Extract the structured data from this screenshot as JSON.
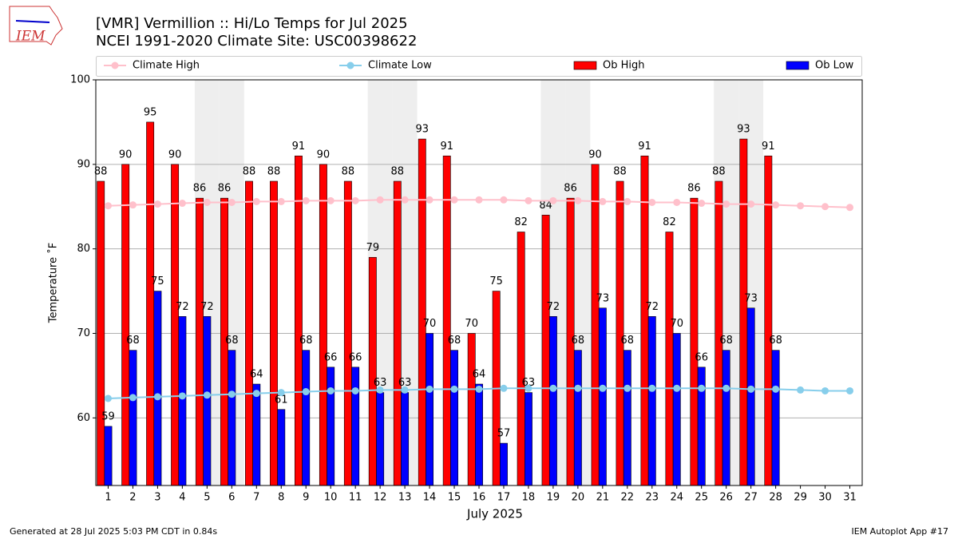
{
  "chart_data": {
    "type": "bar",
    "title": "[VMR] Vermillion :: Hi/Lo Temps for Jul 2025",
    "subtitle": "NCEI 1991-2020 Climate Site: USC00398622",
    "x_label": "July 2025",
    "y_label": "Temperature ˚F",
    "footer_left": "Generated at 28 Jul 2025 5:03 PM CDT in 0.84s",
    "footer_right": "IEM Autoplot App #17",
    "logo_text": "IEM",
    "x": [
      1,
      2,
      3,
      4,
      5,
      6,
      7,
      8,
      9,
      10,
      11,
      12,
      13,
      14,
      15,
      16,
      17,
      18,
      19,
      20,
      21,
      22,
      23,
      24,
      25,
      26,
      27,
      28,
      29,
      30,
      31
    ],
    "xlim": [
      0.5,
      31.5
    ],
    "xticks": [
      1,
      2,
      3,
      4,
      5,
      6,
      7,
      8,
      9,
      10,
      11,
      12,
      13,
      14,
      15,
      16,
      17,
      18,
      19,
      20,
      21,
      22,
      23,
      24,
      25,
      26,
      27,
      28,
      29,
      30,
      31
    ],
    "ylim": [
      52,
      100
    ],
    "yticks": [
      60,
      70,
      80,
      90,
      100
    ],
    "grid": true,
    "shaded_days": [
      5,
      6,
      12,
      13,
      19,
      20,
      26,
      27
    ],
    "series": [
      {
        "name": "Climate High",
        "type": "line",
        "color": "#ffc0cb",
        "values": [
          85.1,
          85.2,
          85.3,
          85.4,
          85.5,
          85.5,
          85.6,
          85.6,
          85.7,
          85.7,
          85.7,
          85.8,
          85.8,
          85.8,
          85.8,
          85.8,
          85.8,
          85.7,
          85.7,
          85.7,
          85.6,
          85.6,
          85.5,
          85.5,
          85.4,
          85.3,
          85.3,
          85.2,
          85.1,
          85.0,
          84.9
        ]
      },
      {
        "name": "Climate Low",
        "type": "line",
        "color": "#87ceeb",
        "values": [
          62.3,
          62.4,
          62.5,
          62.6,
          62.7,
          62.8,
          62.9,
          63.0,
          63.1,
          63.2,
          63.2,
          63.3,
          63.3,
          63.4,
          63.4,
          63.4,
          63.5,
          63.5,
          63.5,
          63.5,
          63.5,
          63.5,
          63.5,
          63.5,
          63.5,
          63.5,
          63.4,
          63.4,
          63.3,
          63.2,
          63.2
        ]
      },
      {
        "name": "Ob High",
        "type": "bar",
        "color": "#ff0000",
        "values": [
          88,
          90,
          95,
          90,
          86,
          86,
          88,
          88,
          91,
          90,
          88,
          79,
          88,
          93,
          91,
          70,
          75,
          82,
          84,
          86,
          90,
          88,
          91,
          82,
          86,
          88,
          93,
          91,
          null,
          null,
          null
        ]
      },
      {
        "name": "Ob Low",
        "type": "bar",
        "color": "#0000ff",
        "values": [
          59,
          68,
          75,
          72,
          72,
          68,
          64,
          61,
          68,
          66,
          66,
          63,
          63,
          70,
          68,
          64,
          57,
          63,
          72,
          68,
          73,
          68,
          72,
          70,
          66,
          68,
          73,
          68,
          null,
          null,
          null
        ]
      }
    ]
  }
}
